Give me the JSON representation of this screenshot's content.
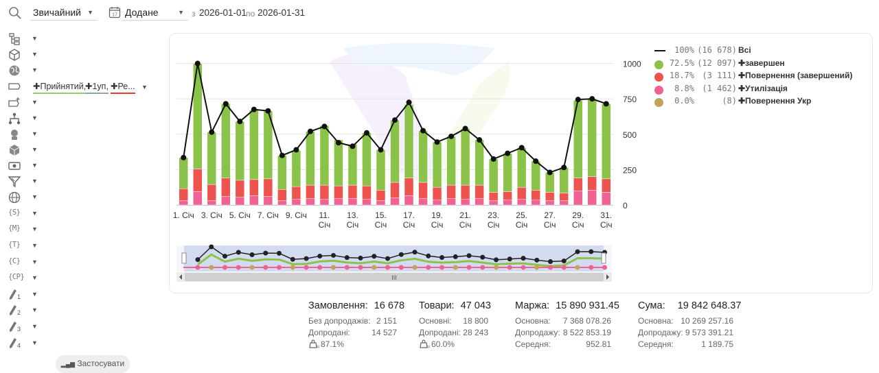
{
  "toolbar": {
    "mode_select": "Звичайний",
    "date_type_select": "Додане",
    "calendar_icon_day": "17",
    "from_label": "з",
    "date_from": "2026-01-01",
    "to_label": "по",
    "date_to": "2026-01-31"
  },
  "sidebar": {
    "icons": [
      "hierarchy-icon",
      "box-icon",
      "globe-icon",
      "tag-icon",
      "tag-add-icon",
      "network-icon",
      "person-icon",
      "cube-icon",
      "money-icon",
      "funnel-icon",
      "globe-grid-icon",
      "s-tag-icon",
      "m-tag-icon",
      "t-tag-icon",
      "c-tag-icon",
      "cp-tag-icon",
      "pen-1-icon",
      "pen-2-icon",
      "pen-3-icon",
      "pen-4-icon"
    ],
    "text_icons": {
      "s": "{S}",
      "m": "{M}",
      "t": "{T}",
      "c": "{C}",
      "cp": "{CP}"
    },
    "pen_numbers": [
      "1",
      "2",
      "3",
      "4"
    ],
    "status_chips": [
      {
        "label": "✚Прийнятий,",
        "color": "#9ccc65"
      },
      {
        "label": "✚1уп,",
        "color": "#90a4ae"
      },
      {
        "label": "✚Ре...",
        "color": "#e53935"
      }
    ],
    "apply_label": "Застосувати"
  },
  "legend": [
    {
      "pct": "100%",
      "count": "(16 678)",
      "name": "Всі",
      "color": "#111111",
      "kind": "line"
    },
    {
      "pct": "72.5%",
      "count": "(12 097)",
      "name": "✚завершен",
      "color": "#8bc34a",
      "kind": "dot"
    },
    {
      "pct": "18.7%",
      "count": "(3 111)",
      "name": "✚Повернення (завершений)",
      "color": "#ef5350",
      "kind": "dot"
    },
    {
      "pct": "8.8%",
      "count": "(1 462)",
      "name": "✚Утилізація",
      "color": "#f06292",
      "kind": "dot"
    },
    {
      "pct": "0.0%",
      "count": "(8)",
      "name": "✚Повернення Укр",
      "color": "#c0a558",
      "kind": "dot"
    }
  ],
  "chart_data": {
    "type": "bar",
    "stacked": true,
    "x": [
      "1. Січ",
      "2. Січ",
      "3. Січ",
      "4. Січ",
      "5. Січ",
      "6. Січ",
      "7. Січ",
      "8. Січ",
      "9. Січ",
      "10. Січ",
      "11. Січ",
      "12. Січ",
      "13. Січ",
      "14. Січ",
      "15. Січ",
      "16. Січ",
      "17. Січ",
      "18. Січ",
      "19. Січ",
      "20. Січ",
      "21. Січ",
      "22. Січ",
      "23. Січ",
      "24. Січ",
      "25. Січ",
      "26. Січ",
      "27. Січ",
      "28. Січ",
      "29. Січ",
      "30. Січ",
      "31. Січ"
    ],
    "x_tick_labels": [
      "1. Січ",
      "3. Січ",
      "5. Січ",
      "7. Січ",
      "9. Січ",
      "11. Січ",
      "13. Січ",
      "15. Січ",
      "17. Січ",
      "19. Січ",
      "21. Січ",
      "23. Січ",
      "25. Січ",
      "27. Січ",
      "29. Січ",
      "31. Січ"
    ],
    "y_ticks": [
      0,
      250,
      500,
      750,
      1000
    ],
    "ylim": [
      0,
      1080
    ],
    "y_axis_position": "right",
    "grid": true,
    "series": [
      {
        "name": "✚Утилізація",
        "color": "#f06292",
        "kind": "bar",
        "values": [
          30,
          95,
          30,
          60,
          55,
          65,
          60,
          30,
          40,
          45,
          40,
          45,
          45,
          40,
          30,
          50,
          65,
          45,
          35,
          45,
          40,
          45,
          30,
          35,
          40,
          35,
          30,
          30,
          100,
          105,
          90
        ]
      },
      {
        "name": "✚Повернення (завершений)",
        "color": "#ef5350",
        "kind": "bar",
        "values": [
          85,
          160,
          115,
          130,
          120,
          115,
          125,
          80,
          90,
          95,
          100,
          90,
          95,
          95,
          75,
          110,
          125,
          115,
          90,
          95,
          100,
          95,
          60,
          60,
          85,
          70,
          60,
          55,
          90,
          95,
          95
        ]
      },
      {
        "name": "✚завершен",
        "color": "#8bc34a",
        "kind": "bar",
        "values": [
          220,
          745,
          370,
          525,
          415,
          490,
          480,
          240,
          255,
          380,
          420,
          325,
          290,
          375,
          285,
          440,
          520,
          365,
          320,
          345,
          400,
          320,
          235,
          270,
          280,
          205,
          140,
          180,
          550,
          550,
          530
        ]
      },
      {
        "name": "Всі",
        "color": "#111111",
        "kind": "line",
        "values": [
          335,
          1000,
          515,
          715,
          590,
          675,
          665,
          350,
          390,
          520,
          555,
          440,
          415,
          510,
          390,
          600,
          725,
          525,
          445,
          485,
          540,
          460,
          325,
          365,
          405,
          310,
          230,
          265,
          745,
          750,
          715
        ]
      }
    ]
  },
  "navigator": {
    "scroll_handle": "III"
  },
  "stats": {
    "orders": {
      "title": "Замовлення:",
      "value": "16 678",
      "rows": [
        {
          "label": "Без допродажів:",
          "value": "2 151"
        },
        {
          "label": "Допродані:",
          "value": "14 527"
        }
      ],
      "pct": "87.1%"
    },
    "goods": {
      "title": "Товари:",
      "value": "47 043",
      "rows": [
        {
          "label": "Основні:",
          "value": "18 800"
        },
        {
          "label": "Допродані:",
          "value": "28 243"
        }
      ],
      "pct": "60.0%"
    },
    "margin": {
      "title": "Маржа:",
      "value": "15 890 931.45",
      "rows": [
        {
          "label": "Основна:",
          "value": "7 368 078.26"
        },
        {
          "label": "Допродажу:",
          "value": "8 522 853.19"
        },
        {
          "label": "Середня:",
          "value": "952.81"
        }
      ]
    },
    "sum": {
      "title": "Сума:",
      "value": "19 842 648.37",
      "rows": [
        {
          "label": "Основна:",
          "value": "10 269 257.16"
        },
        {
          "label": "Допродажу:",
          "value": "9 573 391.21"
        },
        {
          "label": "Середня:",
          "value": "1 189.75"
        }
      ]
    }
  }
}
